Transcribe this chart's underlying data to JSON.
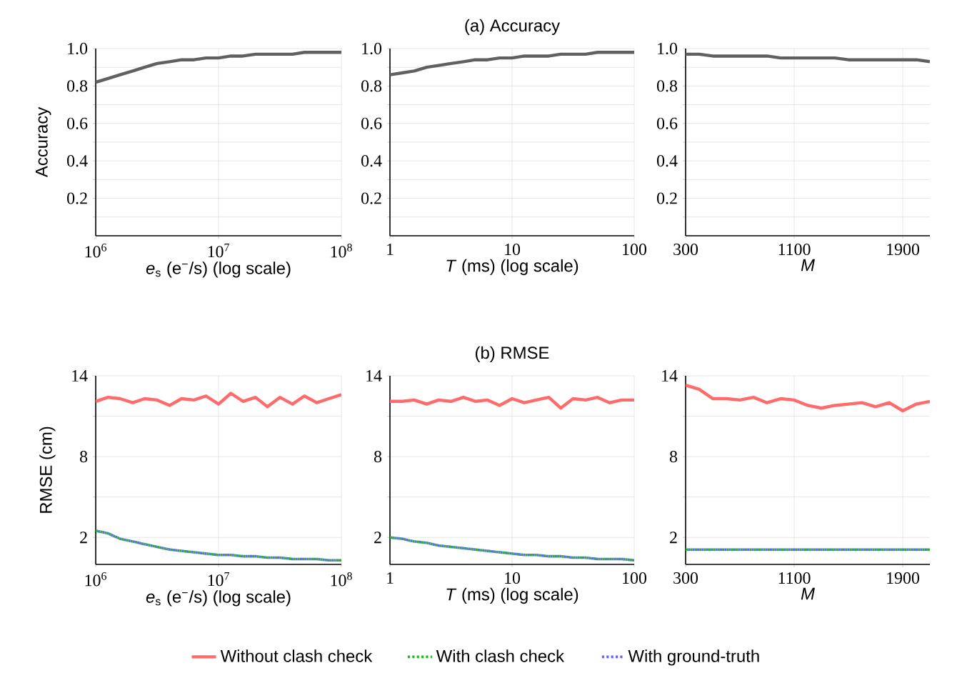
{
  "chart_data": [
    {
      "type": "line",
      "ylabel": "Accuracy",
      "xlabel": "*e*$_{s}$ (e$^{−}$/s) (log scale)",
      "log": "x",
      "grid": true,
      "xlim": [
        1000000.0,
        100000000.0
      ],
      "xticks": [
        {
          "value": 1000000.0,
          "label": "10$^{6}$"
        },
        {
          "value": 10000000.0,
          "label": "10$^{7}$"
        },
        {
          "value": 100000000.0,
          "label": "10$^{8}$"
        }
      ],
      "ylim": [
        0,
        1
      ],
      "yticks": [
        {
          "value": 0.1,
          "label": null
        },
        0.2,
        {
          "value": 0.3,
          "label": null
        },
        0.4,
        {
          "value": 0.5,
          "label": null
        },
        0.6,
        {
          "value": 0.7,
          "label": null
        },
        0.8,
        {
          "value": 0.9,
          "label": null
        },
        {
          "value": 1,
          "label": "1.0"
        }
      ],
      "x": [
        1000000.0,
        1260000.0,
        1580000.0,
        2000000.0,
        2500000.0,
        3160000.0,
        4000000.0,
        5000000.0,
        6300000.0,
        7900000.0,
        10000000.0,
        12600000.0,
        15800000.0,
        20000000.0,
        25000000.0,
        31600000.0,
        40000000.0,
        50000000.0,
        63000000.0,
        79000000.0,
        100000000.0
      ],
      "series": [
        {
          "color": "#606060",
          "line_style": "solid",
          "values": [
            0.82,
            0.84,
            0.86,
            0.88,
            0.9,
            0.92,
            0.93,
            0.94,
            0.94,
            0.95,
            0.95,
            0.96,
            0.96,
            0.97,
            0.97,
            0.97,
            0.97,
            0.98,
            0.98,
            0.98,
            0.98
          ]
        }
      ]
    },
    {
      "type": "line",
      "title": "(a) Accuracy",
      "xlabel": "*T* (ms) (log scale)",
      "log": "x",
      "grid": true,
      "xlim": [
        1,
        100
      ],
      "xticks": [
        1,
        10,
        100
      ],
      "ylim": [
        0,
        1
      ],
      "yticks": [
        {
          "value": 0.1,
          "label": null
        },
        0.2,
        {
          "value": 0.3,
          "label": null
        },
        0.4,
        {
          "value": 0.5,
          "label": null
        },
        0.6,
        {
          "value": 0.7,
          "label": null
        },
        0.8,
        {
          "value": 0.9,
          "label": null
        },
        {
          "value": 1,
          "label": "1.0"
        }
      ],
      "x": [
        1,
        1.26,
        1.58,
        2,
        2.5,
        3.16,
        4,
        5,
        6.3,
        7.9,
        10,
        12.6,
        15.8,
        20,
        25,
        31.6,
        40,
        50,
        63,
        79,
        100
      ],
      "series": [
        {
          "color": "#606060",
          "line_style": "solid",
          "values": [
            0.86,
            0.87,
            0.88,
            0.9,
            0.91,
            0.92,
            0.93,
            0.94,
            0.94,
            0.95,
            0.95,
            0.96,
            0.96,
            0.96,
            0.97,
            0.97,
            0.97,
            0.98,
            0.98,
            0.98,
            0.98
          ]
        }
      ]
    },
    {
      "type": "line",
      "xlabel": "*M*",
      "grid": true,
      "xlim": [
        300,
        2100
      ],
      "xticks": [
        300,
        1100,
        1900
      ],
      "ylim": [
        0,
        1
      ],
      "yticks": [
        {
          "value": 0.1,
          "label": null
        },
        0.2,
        {
          "value": 0.3,
          "label": null
        },
        0.4,
        {
          "value": 0.5,
          "label": null
        },
        0.6,
        {
          "value": 0.7,
          "label": null
        },
        0.8,
        {
          "value": 0.9,
          "label": null
        },
        {
          "value": 1,
          "label": "1.0"
        }
      ],
      "x": [
        300,
        400,
        500,
        600,
        700,
        800,
        900,
        1000,
        1100,
        1200,
        1300,
        1400,
        1500,
        1600,
        1700,
        1800,
        1900,
        2000,
        2100
      ],
      "series": [
        {
          "color": "#606060",
          "line_style": "solid",
          "values": [
            0.97,
            0.97,
            0.96,
            0.96,
            0.96,
            0.96,
            0.96,
            0.95,
            0.95,
            0.95,
            0.95,
            0.95,
            0.94,
            0.94,
            0.94,
            0.94,
            0.94,
            0.94,
            0.93
          ]
        }
      ]
    },
    {
      "type": "line",
      "ylabel": "RMSE (cm)",
      "xlabel": "*e*$_{s}$ (e$^{−}$/s) (log scale)",
      "log": "x",
      "grid": true,
      "legend": "bottom",
      "xlim": [
        1000000.0,
        100000000.0
      ],
      "xticks": [
        {
          "value": 1000000.0,
          "label": "10$^{6}$"
        },
        {
          "value": 10000000.0,
          "label": "10$^{7}$"
        },
        {
          "value": 100000000.0,
          "label": "10$^{8}$"
        }
      ],
      "ylim": [
        0,
        14
      ],
      "yticks": [
        2,
        {
          "value": 5,
          "label": null
        },
        8,
        {
          "value": 11,
          "label": null
        },
        14
      ],
      "x": [
        1000000.0,
        1260000.0,
        1580000.0,
        2000000.0,
        2500000.0,
        3160000.0,
        4000000.0,
        5000000.0,
        6300000.0,
        7900000.0,
        10000000.0,
        12600000.0,
        15800000.0,
        20000000.0,
        25000000.0,
        31600000.0,
        40000000.0,
        50000000.0,
        63000000.0,
        79000000.0,
        100000000.0
      ],
      "series": [
        {
          "name": "Without clash check",
          "color": "#ff6b6b",
          "line_style": "solid",
          "values": [
            12.1,
            12.4,
            12.3,
            12.0,
            12.3,
            12.2,
            11.8,
            12.3,
            12.2,
            12.5,
            11.9,
            12.7,
            12.1,
            12.4,
            11.7,
            12.4,
            11.9,
            12.5,
            12.0,
            12.3,
            12.6
          ]
        },
        {
          "name": "With clash check",
          "color": "#22bb22",
          "line_style": "dotted",
          "values": [
            2.5,
            2.3,
            1.9,
            1.7,
            1.5,
            1.3,
            1.1,
            1.0,
            0.9,
            0.8,
            0.7,
            0.7,
            0.6,
            0.6,
            0.5,
            0.5,
            0.4,
            0.4,
            0.4,
            0.3,
            0.3
          ]
        },
        {
          "name": "With ground-truth",
          "color": "#6666ff",
          "line_style": "dotted",
          "values": [
            2.5,
            2.3,
            1.9,
            1.7,
            1.5,
            1.3,
            1.1,
            1.0,
            0.9,
            0.8,
            0.7,
            0.7,
            0.6,
            0.6,
            0.5,
            0.5,
            0.4,
            0.4,
            0.4,
            0.3,
            0.3
          ]
        }
      ]
    },
    {
      "type": "line",
      "title": "(b) RMSE",
      "xlabel": "*T* (ms) (log scale)",
      "log": "x",
      "grid": true,
      "xlim": [
        1,
        100
      ],
      "xticks": [
        1,
        10,
        100
      ],
      "ylim": [
        0,
        14
      ],
      "yticks": [
        2,
        {
          "value": 5,
          "label": null
        },
        8,
        {
          "value": 11,
          "label": null
        },
        14
      ],
      "x": [
        1,
        1.26,
        1.58,
        2,
        2.5,
        3.16,
        4,
        5,
        6.3,
        7.9,
        10,
        12.6,
        15.8,
        20,
        25,
        31.6,
        40,
        50,
        63,
        79,
        100
      ],
      "series": [
        {
          "color": "#ff6b6b",
          "line_style": "solid",
          "values": [
            12.1,
            12.1,
            12.2,
            11.9,
            12.2,
            12.1,
            12.4,
            12.1,
            12.2,
            11.8,
            12.3,
            12.0,
            12.2,
            12.4,
            11.6,
            12.3,
            12.2,
            12.4,
            12.0,
            12.2,
            12.2
          ]
        },
        {
          "color": "#22bb22",
          "line_style": "dotted",
          "values": [
            2.0,
            1.9,
            1.7,
            1.6,
            1.4,
            1.3,
            1.2,
            1.1,
            1.0,
            0.9,
            0.8,
            0.7,
            0.7,
            0.6,
            0.6,
            0.5,
            0.5,
            0.4,
            0.4,
            0.4,
            0.3
          ]
        },
        {
          "color": "#6666ff",
          "line_style": "dotted",
          "values": [
            2.0,
            1.9,
            1.7,
            1.6,
            1.4,
            1.3,
            1.2,
            1.1,
            1.0,
            0.9,
            0.8,
            0.7,
            0.7,
            0.6,
            0.6,
            0.5,
            0.5,
            0.4,
            0.4,
            0.4,
            0.3
          ]
        }
      ]
    },
    {
      "type": "line",
      "xlabel": "*M*",
      "grid": true,
      "xlim": [
        300,
        2100
      ],
      "xticks": [
        300,
        1100,
        1900
      ],
      "ylim": [
        0,
        14
      ],
      "yticks": [
        2,
        {
          "value": 5,
          "label": null
        },
        8,
        {
          "value": 11,
          "label": null
        },
        14
      ],
      "x": [
        300,
        400,
        500,
        600,
        700,
        800,
        900,
        1000,
        1100,
        1200,
        1300,
        1400,
        1500,
        1600,
        1700,
        1800,
        1900,
        2000,
        2100
      ],
      "series": [
        {
          "color": "#ff6b6b",
          "line_style": "solid",
          "values": [
            13.3,
            13.0,
            12.3,
            12.3,
            12.2,
            12.4,
            12.0,
            12.3,
            12.2,
            11.8,
            11.6,
            11.8,
            11.9,
            12.0,
            11.7,
            12.0,
            11.4,
            11.9,
            12.1
          ]
        },
        {
          "color": "#22bb22",
          "line_style": "dotted",
          "values": [
            1.1,
            1.1,
            1.1,
            1.1,
            1.1,
            1.1,
            1.1,
            1.1,
            1.1,
            1.1,
            1.1,
            1.1,
            1.1,
            1.1,
            1.1,
            1.1,
            1.1,
            1.1,
            1.1
          ]
        },
        {
          "color": "#6666ff",
          "line_style": "dotted",
          "values": [
            1.1,
            1.1,
            1.1,
            1.1,
            1.1,
            1.1,
            1.1,
            1.1,
            1.1,
            1.1,
            1.1,
            1.1,
            1.1,
            1.1,
            1.1,
            1.1,
            1.1,
            1.1,
            1.1
          ]
        }
      ]
    }
  ]
}
